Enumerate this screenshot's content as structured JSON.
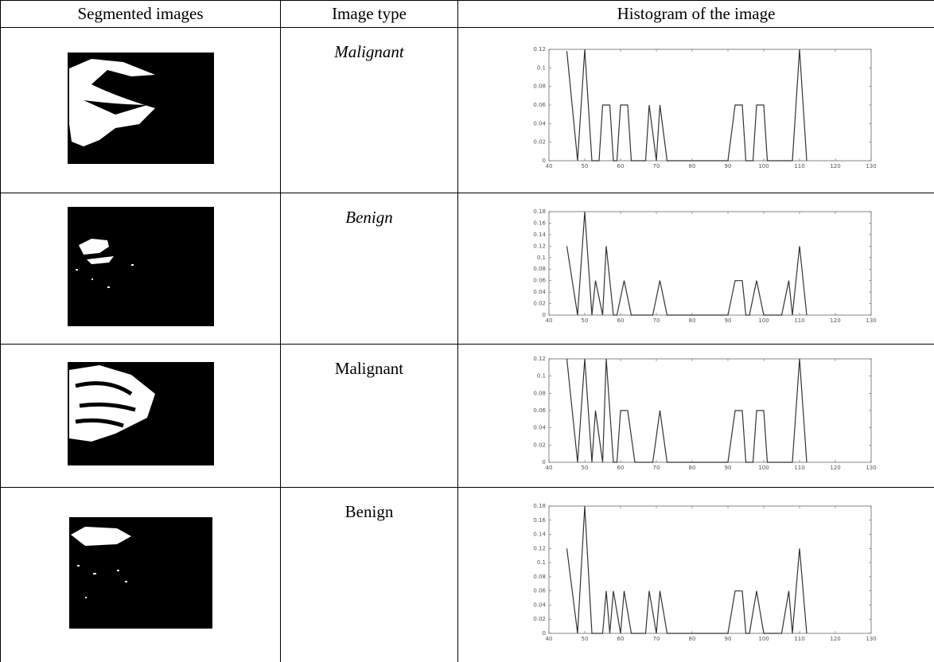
{
  "table": {
    "headers": [
      "Segmented images",
      "Image type",
      "Histogram of the image"
    ],
    "image_types": [
      "Malignant",
      "Benign",
      "Malignant",
      "Benign"
    ]
  },
  "chart_data": [
    {
      "type": "line",
      "color": "#333333",
      "x": [
        45,
        48,
        50,
        52,
        54,
        55,
        57,
        58,
        59,
        60,
        62,
        63,
        67,
        68,
        70,
        71,
        73,
        90,
        92,
        94,
        95,
        97,
        98,
        100,
        101,
        108,
        110,
        112
      ],
      "values": [
        0.118,
        0,
        0.12,
        0,
        0,
        0.06,
        0.06,
        0,
        0,
        0.06,
        0.06,
        0,
        0,
        0.06,
        0,
        0.06,
        0,
        0,
        0.06,
        0.06,
        0,
        0,
        0.06,
        0.06,
        0,
        0,
        0.12,
        0
      ],
      "xlim": [
        40,
        130
      ],
      "xticks": [
        40,
        50,
        60,
        70,
        80,
        90,
        100,
        110,
        120,
        130
      ],
      "ylim": [
        0,
        0.12
      ],
      "yticks": [
        0,
        0.02,
        0.04,
        0.06,
        0.08,
        0.1,
        0.12
      ]
    },
    {
      "type": "line",
      "color": "#333333",
      "x": [
        45,
        48,
        50,
        52,
        53,
        55,
        56,
        58,
        59,
        61,
        63,
        69,
        71,
        73,
        90,
        92,
        94,
        95,
        96,
        98,
        100,
        105,
        107,
        108,
        110,
        112
      ],
      "values": [
        0.12,
        0,
        0.18,
        0,
        0.06,
        0,
        0.12,
        0,
        0,
        0.06,
        0,
        0,
        0.06,
        0,
        0,
        0.06,
        0.06,
        0,
        0,
        0.06,
        0,
        0,
        0.06,
        0,
        0.12,
        0
      ],
      "xlim": [
        40,
        130
      ],
      "xticks": [
        40,
        50,
        60,
        70,
        80,
        90,
        100,
        110,
        120,
        130
      ],
      "ylim": [
        0,
        0.18
      ],
      "yticks": [
        0,
        0.02,
        0.04,
        0.06,
        0.08,
        0.1,
        0.12,
        0.14,
        0.16,
        0.18
      ]
    },
    {
      "type": "line",
      "color": "#333333",
      "x": [
        45,
        48,
        50,
        52,
        53,
        55,
        56,
        58,
        59,
        60,
        62,
        64,
        69,
        71,
        73,
        90,
        92,
        94,
        95,
        97,
        98,
        100,
        101,
        108,
        110,
        112
      ],
      "values": [
        0.12,
        0,
        0.12,
        0,
        0.06,
        0,
        0.12,
        0,
        0,
        0.06,
        0.06,
        0,
        0,
        0.06,
        0,
        0,
        0.06,
        0.06,
        0,
        0,
        0.06,
        0.06,
        0,
        0,
        0.12,
        0
      ],
      "xlim": [
        40,
        130
      ],
      "xticks": [
        40,
        50,
        60,
        70,
        80,
        90,
        100,
        110,
        120,
        130
      ],
      "ylim": [
        0,
        0.12
      ],
      "yticks": [
        0,
        0.02,
        0.04,
        0.06,
        0.08,
        0.1,
        0.12
      ]
    },
    {
      "type": "line",
      "color": "#333333",
      "x": [
        45,
        48,
        50,
        52,
        55,
        56,
        57,
        58,
        60,
        61,
        63,
        67,
        68,
        70,
        71,
        73,
        90,
        92,
        94,
        95,
        96,
        98,
        100,
        105,
        107,
        108,
        110,
        112
      ],
      "values": [
        0.12,
        0,
        0.18,
        0,
        0,
        0.06,
        0,
        0.06,
        0,
        0.06,
        0,
        0,
        0.06,
        0,
        0.06,
        0,
        0,
        0.06,
        0.06,
        0,
        0,
        0.06,
        0,
        0,
        0.06,
        0,
        0.12,
        0
      ],
      "xlim": [
        40,
        130
      ],
      "xticks": [
        40,
        50,
        60,
        70,
        80,
        90,
        100,
        110,
        120,
        130
      ],
      "ylim": [
        0,
        0.18
      ],
      "yticks": [
        0,
        0.02,
        0.04,
        0.06,
        0.08,
        0.1,
        0.12,
        0.14,
        0.16,
        0.18
      ]
    }
  ]
}
